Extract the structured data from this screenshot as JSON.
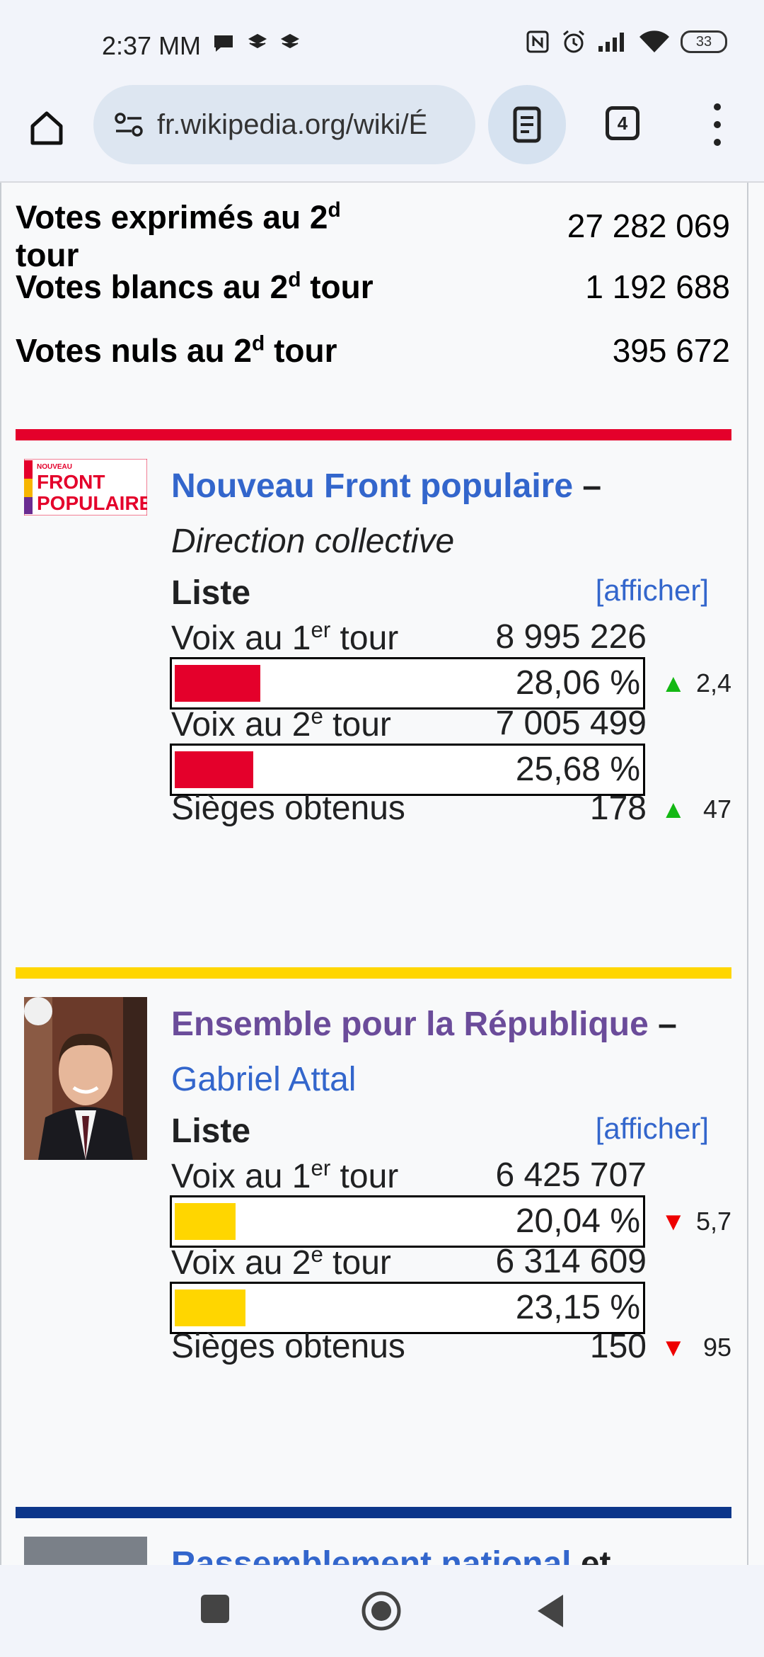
{
  "status_bar": {
    "time": "2:37 MM",
    "battery": "33"
  },
  "browser": {
    "url": "fr.wikipedia.org/wiki/É",
    "tab_count": "4"
  },
  "summary": [
    {
      "label_a": "Votes exprimés au 2",
      "sup": "d",
      "label_b": "tour",
      "value": "27 282 069"
    },
    {
      "label_a": "Votes blancs au 2",
      "sup": "d",
      "label_b": " tour",
      "value": "1 192 688"
    },
    {
      "label_a": "Votes nuls au 2",
      "sup": "d",
      "label_b": " tour",
      "value": "395 672"
    }
  ],
  "parties": [
    {
      "name": "Nouveau Front populaire",
      "dash": " –",
      "leader": "Direction collective",
      "color": "#e4002b",
      "logo_text": [
        "NOUVEAU",
        "FRONT",
        "POPULAIRE"
      ],
      "liste_label": "Liste",
      "afficher": "[afficher]",
      "round1_label_a": "Voix au 1",
      "round1_sup": "er",
      "round1_label_b": " tour",
      "round1_votes": "8 995 226",
      "round1_pct": "28,06 %",
      "round1_pct_value": 28.06,
      "round1_delta": "2,4",
      "round1_delta_dir": "up",
      "round2_label_a": "Voix au 2",
      "round2_sup": "e",
      "round2_label_b": " tour",
      "round2_votes": "7 005 499",
      "round2_pct": "25,68 %",
      "round2_pct_value": 25.68,
      "seats_label": "Sièges obtenus",
      "seats": "178",
      "seats_delta": "47",
      "seats_delta_dir": "up"
    },
    {
      "name": "Ensemble pour la République",
      "dash": " –",
      "leader": "Gabriel Attal",
      "color": "#ffd600",
      "liste_label": "Liste",
      "afficher": "[afficher]",
      "round1_label_a": "Voix au 1",
      "round1_sup": "er",
      "round1_label_b": " tour",
      "round1_votes": "6 425 707",
      "round1_pct": "20,04 %",
      "round1_pct_value": 20.04,
      "round1_delta": "5,7",
      "round1_delta_dir": "down",
      "round2_label_a": "Voix au 2",
      "round2_sup": "e",
      "round2_label_b": " tour",
      "round2_votes": "6 314 609",
      "round2_pct": "23,15 %",
      "round2_pct_value": 23.15,
      "seats_label": "Sièges obtenus",
      "seats": "150",
      "seats_delta": "95",
      "seats_delta_dir": "down"
    },
    {
      "name": "Rassemblement national",
      "suffix": " et",
      "color": "#0d378a"
    }
  ]
}
